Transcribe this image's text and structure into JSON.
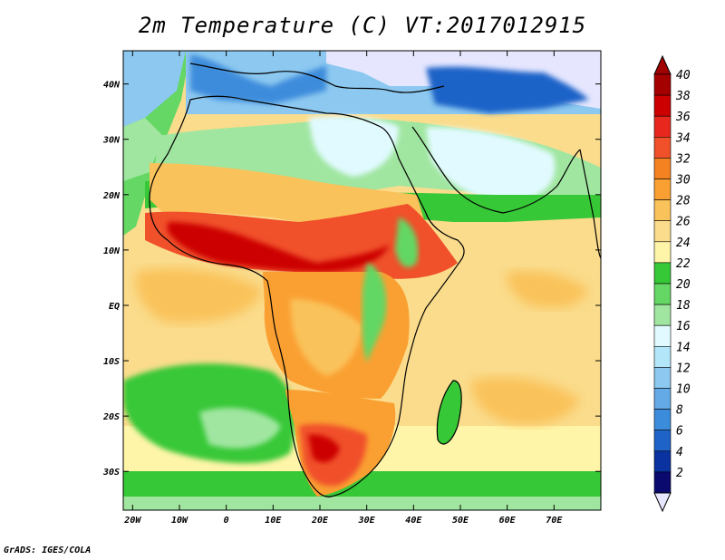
{
  "title": "2m Temperature (C) VT:2017012915",
  "footer": "GrADS: IGES/COLA",
  "map": {
    "lon_range": [
      -22,
      80
    ],
    "lat_range": [
      -37,
      46
    ],
    "lon_ticks": [
      {
        "value": -20,
        "label": "20W"
      },
      {
        "value": -10,
        "label": "10W"
      },
      {
        "value": 0,
        "label": "0"
      },
      {
        "value": 10,
        "label": "10E"
      },
      {
        "value": 20,
        "label": "20E"
      },
      {
        "value": 30,
        "label": "30E"
      },
      {
        "value": 40,
        "label": "40E"
      },
      {
        "value": 50,
        "label": "50E"
      },
      {
        "value": 60,
        "label": "60E"
      },
      {
        "value": 70,
        "label": "70E"
      }
    ],
    "lat_ticks": [
      {
        "value": 40,
        "label": "40N"
      },
      {
        "value": 30,
        "label": "30N"
      },
      {
        "value": 20,
        "label": "20N"
      },
      {
        "value": 10,
        "label": "10N"
      },
      {
        "value": 0,
        "label": "EQ"
      },
      {
        "value": -10,
        "label": "10S"
      },
      {
        "value": -20,
        "label": "20S"
      },
      {
        "value": -30,
        "label": "30S"
      }
    ]
  },
  "colorbar": {
    "levels": [
      "40",
      "38",
      "36",
      "34",
      "32",
      "30",
      "28",
      "26",
      "24",
      "22",
      "20",
      "18",
      "16",
      "14",
      "12",
      "10",
      "8",
      "6",
      "4",
      "2"
    ],
    "colors_top_to_bottom": [
      "#a50000",
      "#cc0000",
      "#e8281e",
      "#f0502a",
      "#f58220",
      "#faa032",
      "#fac25a",
      "#fadc8c",
      "#fff5a8",
      "#37c837",
      "#64d764",
      "#a0e6a0",
      "#e1faff",
      "#b4e6fa",
      "#8cc8f0",
      "#64aae6",
      "#3c8cdc",
      "#1e64c8",
      "#0a32a0",
      "#0a0a6e"
    ],
    "top_triangle_color": "#a00000",
    "bottom_triangle_color": "#e6e6ff"
  },
  "palette": {
    "ocean_tropical": "#fadc8c",
    "ocean_cool": "#37c837",
    "ocean_cold": "#a0e6a0",
    "sahara_north": "#e1faff",
    "med_cold": "#8cc8f0",
    "europe_cold": "#e6e6ff",
    "hot_belt": "#f0502a",
    "very_hot": "#cc0000",
    "warm_land": "#faa032",
    "land_mid": "#fac25a",
    "east_afr_high": "#64d764"
  }
}
